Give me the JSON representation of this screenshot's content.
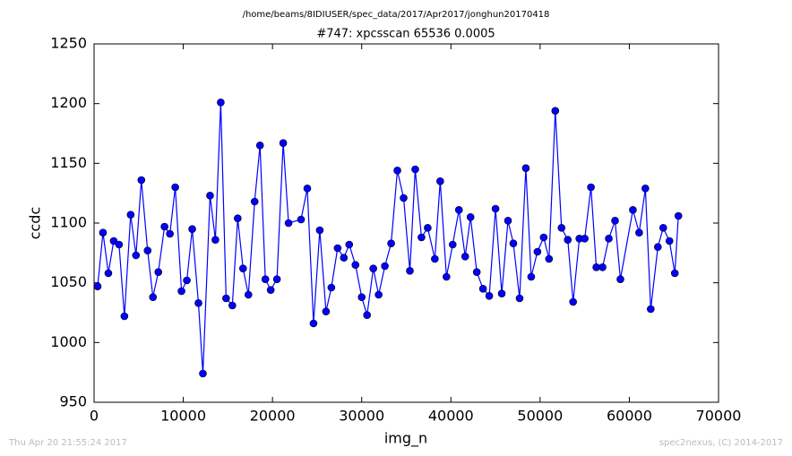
{
  "chart_data": {
    "type": "line",
    "suptitle": "/home/beams/8IDIUSER/spec_data/2017/Apr2017/jonghun20170418",
    "title": "#747: xpcsscan 65536 0.0005",
    "xlabel": "img_n",
    "ylabel": "ccdc",
    "x": [
      400,
      1000,
      1600,
      2200,
      2800,
      3400,
      4100,
      4700,
      5300,
      6000,
      6600,
      7200,
      7900,
      8500,
      9100,
      9800,
      10400,
      11000,
      11700,
      12200,
      13000,
      13600,
      14200,
      14800,
      15500,
      16100,
      16700,
      17300,
      18000,
      18600,
      19200,
      19800,
      20500,
      21200,
      21800,
      23200,
      23900,
      24600,
      25300,
      26000,
      26600,
      27300,
      28000,
      28600,
      29300,
      30000,
      30600,
      31300,
      31900,
      32600,
      33300,
      34000,
      34700,
      35400,
      36000,
      36700,
      37400,
      38200,
      38800,
      39500,
      40200,
      40900,
      41600,
      42200,
      42900,
      43600,
      44300,
      45000,
      45700,
      46400,
      47000,
      47700,
      48400,
      49000,
      49700,
      50400,
      51000,
      51700,
      52400,
      53100,
      53700,
      54400,
      55000,
      55700,
      56300,
      57000,
      57700,
      58400,
      59000,
      60400,
      61100,
      61800,
      62400,
      63200,
      63800,
      64500,
      65100,
      65500
    ],
    "series": [
      {
        "name": "ccdc",
        "color": "#0000ff",
        "values": [
          1047,
          1092,
          1058,
          1085,
          1082,
          1022,
          1107,
          1073,
          1136,
          1077,
          1038,
          1059,
          1097,
          1091,
          1130,
          1043,
          1052,
          1095,
          1033,
          974,
          1123,
          1086,
          1201,
          1037,
          1031,
          1104,
          1062,
          1040,
          1118,
          1165,
          1053,
          1044,
          1053,
          1167,
          1100,
          1103,
          1129,
          1016,
          1094,
          1026,
          1046,
          1079,
          1071,
          1082,
          1065,
          1038,
          1023,
          1062,
          1040,
          1064,
          1083,
          1144,
          1121,
          1060,
          1145,
          1088,
          1096,
          1070,
          1135,
          1055,
          1082,
          1111,
          1072,
          1105,
          1059,
          1045,
          1039,
          1112,
          1041,
          1102,
          1083,
          1037,
          1146,
          1055,
          1076,
          1088,
          1070,
          1194,
          1096,
          1086,
          1034,
          1087,
          1087,
          1130,
          1063,
          1063,
          1087,
          1102,
          1053,
          1111,
          1092,
          1129,
          1028,
          1080,
          1096,
          1085,
          1058,
          1106
        ]
      }
    ],
    "xlim": [
      0,
      70000
    ],
    "ylim": [
      950,
      1250
    ],
    "xticks": [
      0,
      10000,
      20000,
      30000,
      40000,
      50000,
      60000,
      70000
    ],
    "yticks": [
      950,
      1000,
      1050,
      1100,
      1150,
      1200,
      1250
    ]
  },
  "footer": {
    "left": "Thu Apr 20 21:55:24 2017",
    "right": "spec2nexus, (C) 2014-2017"
  }
}
